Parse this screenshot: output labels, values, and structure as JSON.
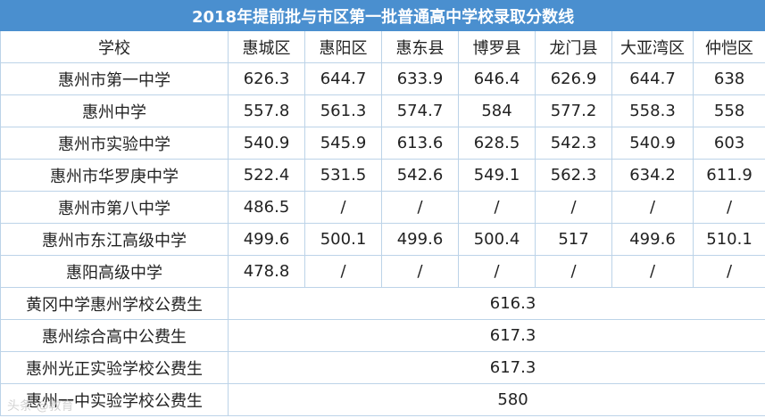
{
  "title": "2018年提前批与市区第一批普通高中学校录取分数线",
  "headers": [
    "学校",
    "惠城区",
    "惠阳区",
    "惠东县",
    "博罗县",
    "龙门县",
    "大亚湾区",
    "仲恺区"
  ],
  "rows": [
    {
      "school": "惠州市第一中学",
      "scores": [
        "626.3",
        "644.7",
        "633.9",
        "646.4",
        "626.9",
        "644.7",
        "638"
      ]
    },
    {
      "school": "惠州中学",
      "scores": [
        "557.8",
        "561.3",
        "574.7",
        "584",
        "577.2",
        "558.3",
        "558"
      ]
    },
    {
      "school": "惠州市实验中学",
      "scores": [
        "540.9",
        "545.9",
        "613.6",
        "628.5",
        "542.3",
        "540.9",
        "603"
      ]
    },
    {
      "school": "惠州市华罗庚中学",
      "scores": [
        "522.4",
        "531.5",
        "542.6",
        "549.1",
        "562.3",
        "634.2",
        "611.9"
      ]
    },
    {
      "school": "惠州市第八中学",
      "scores": [
        "486.5",
        "/",
        "/",
        "/",
        "/",
        "/",
        "/"
      ]
    },
    {
      "school": "惠州市东江高级中学",
      "scores": [
        "499.6",
        "500.1",
        "499.6",
        "500.4",
        "517",
        "499.6",
        "510.1"
      ]
    },
    {
      "school": "惠阳高级中学",
      "scores": [
        "478.8",
        "/",
        "/",
        "/",
        "/",
        "/",
        "/"
      ]
    }
  ],
  "merged_rows": [
    {
      "school": "黄冈中学惠州学校公费生",
      "score": "616.3"
    },
    {
      "school": "惠州综合高中公费生",
      "score": "617.3"
    },
    {
      "school": "惠州光正实验学校公费生",
      "score": "617.3"
    },
    {
      "school": "惠州一中实验学校公费生",
      "score": "580"
    }
  ],
  "watermark": "头条 @教育"
}
